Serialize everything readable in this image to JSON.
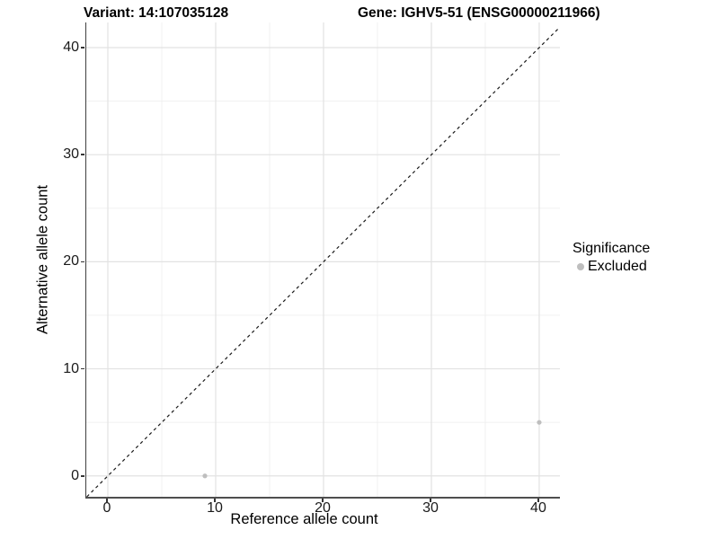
{
  "figure": {
    "title_variant": "Variant: 14:107035128",
    "title_gene": "Gene: IGHV5-51 (ENSG00000211966)"
  },
  "chart_data": {
    "type": "scatter",
    "title_left": "Variant: 14:107035128",
    "title_right": "Gene: IGHV5-51 (ENSG00000211966)",
    "xlabel": "Reference allele count",
    "ylabel": "Alternative allele count",
    "xlim": [
      -2,
      41.92
    ],
    "ylim": [
      -1.95,
      42.35
    ],
    "xticks": [
      0,
      10,
      20,
      30,
      40
    ],
    "yticks": [
      0,
      10,
      20,
      30,
      40
    ],
    "xticks_minor": [
      5,
      15,
      25,
      35
    ],
    "yticks_minor": [
      5,
      15,
      25,
      35
    ],
    "grid": "major+minor",
    "series": [
      {
        "name": "Excluded",
        "color": "#bebebe",
        "points": [
          [
            9,
            0
          ],
          [
            40,
            5
          ]
        ]
      }
    ],
    "reference_line": {
      "kind": "identity",
      "style": "dashed",
      "color": "#1a1a1a"
    },
    "legend": {
      "title": "Significance",
      "position": "right",
      "entries": [
        {
          "label": "Excluded",
          "color": "#bebebe",
          "marker": "circle"
        }
      ]
    }
  },
  "style": {
    "background": "#ffffff",
    "grid_major_color": "#e2e2e2",
    "grid_minor_color": "#efefef",
    "axis_line_color": "#404040",
    "tick_color": "#333333",
    "tick_label_color": "#1a1a1a",
    "text_color": "#000000",
    "point_color": "#bebebe"
  }
}
